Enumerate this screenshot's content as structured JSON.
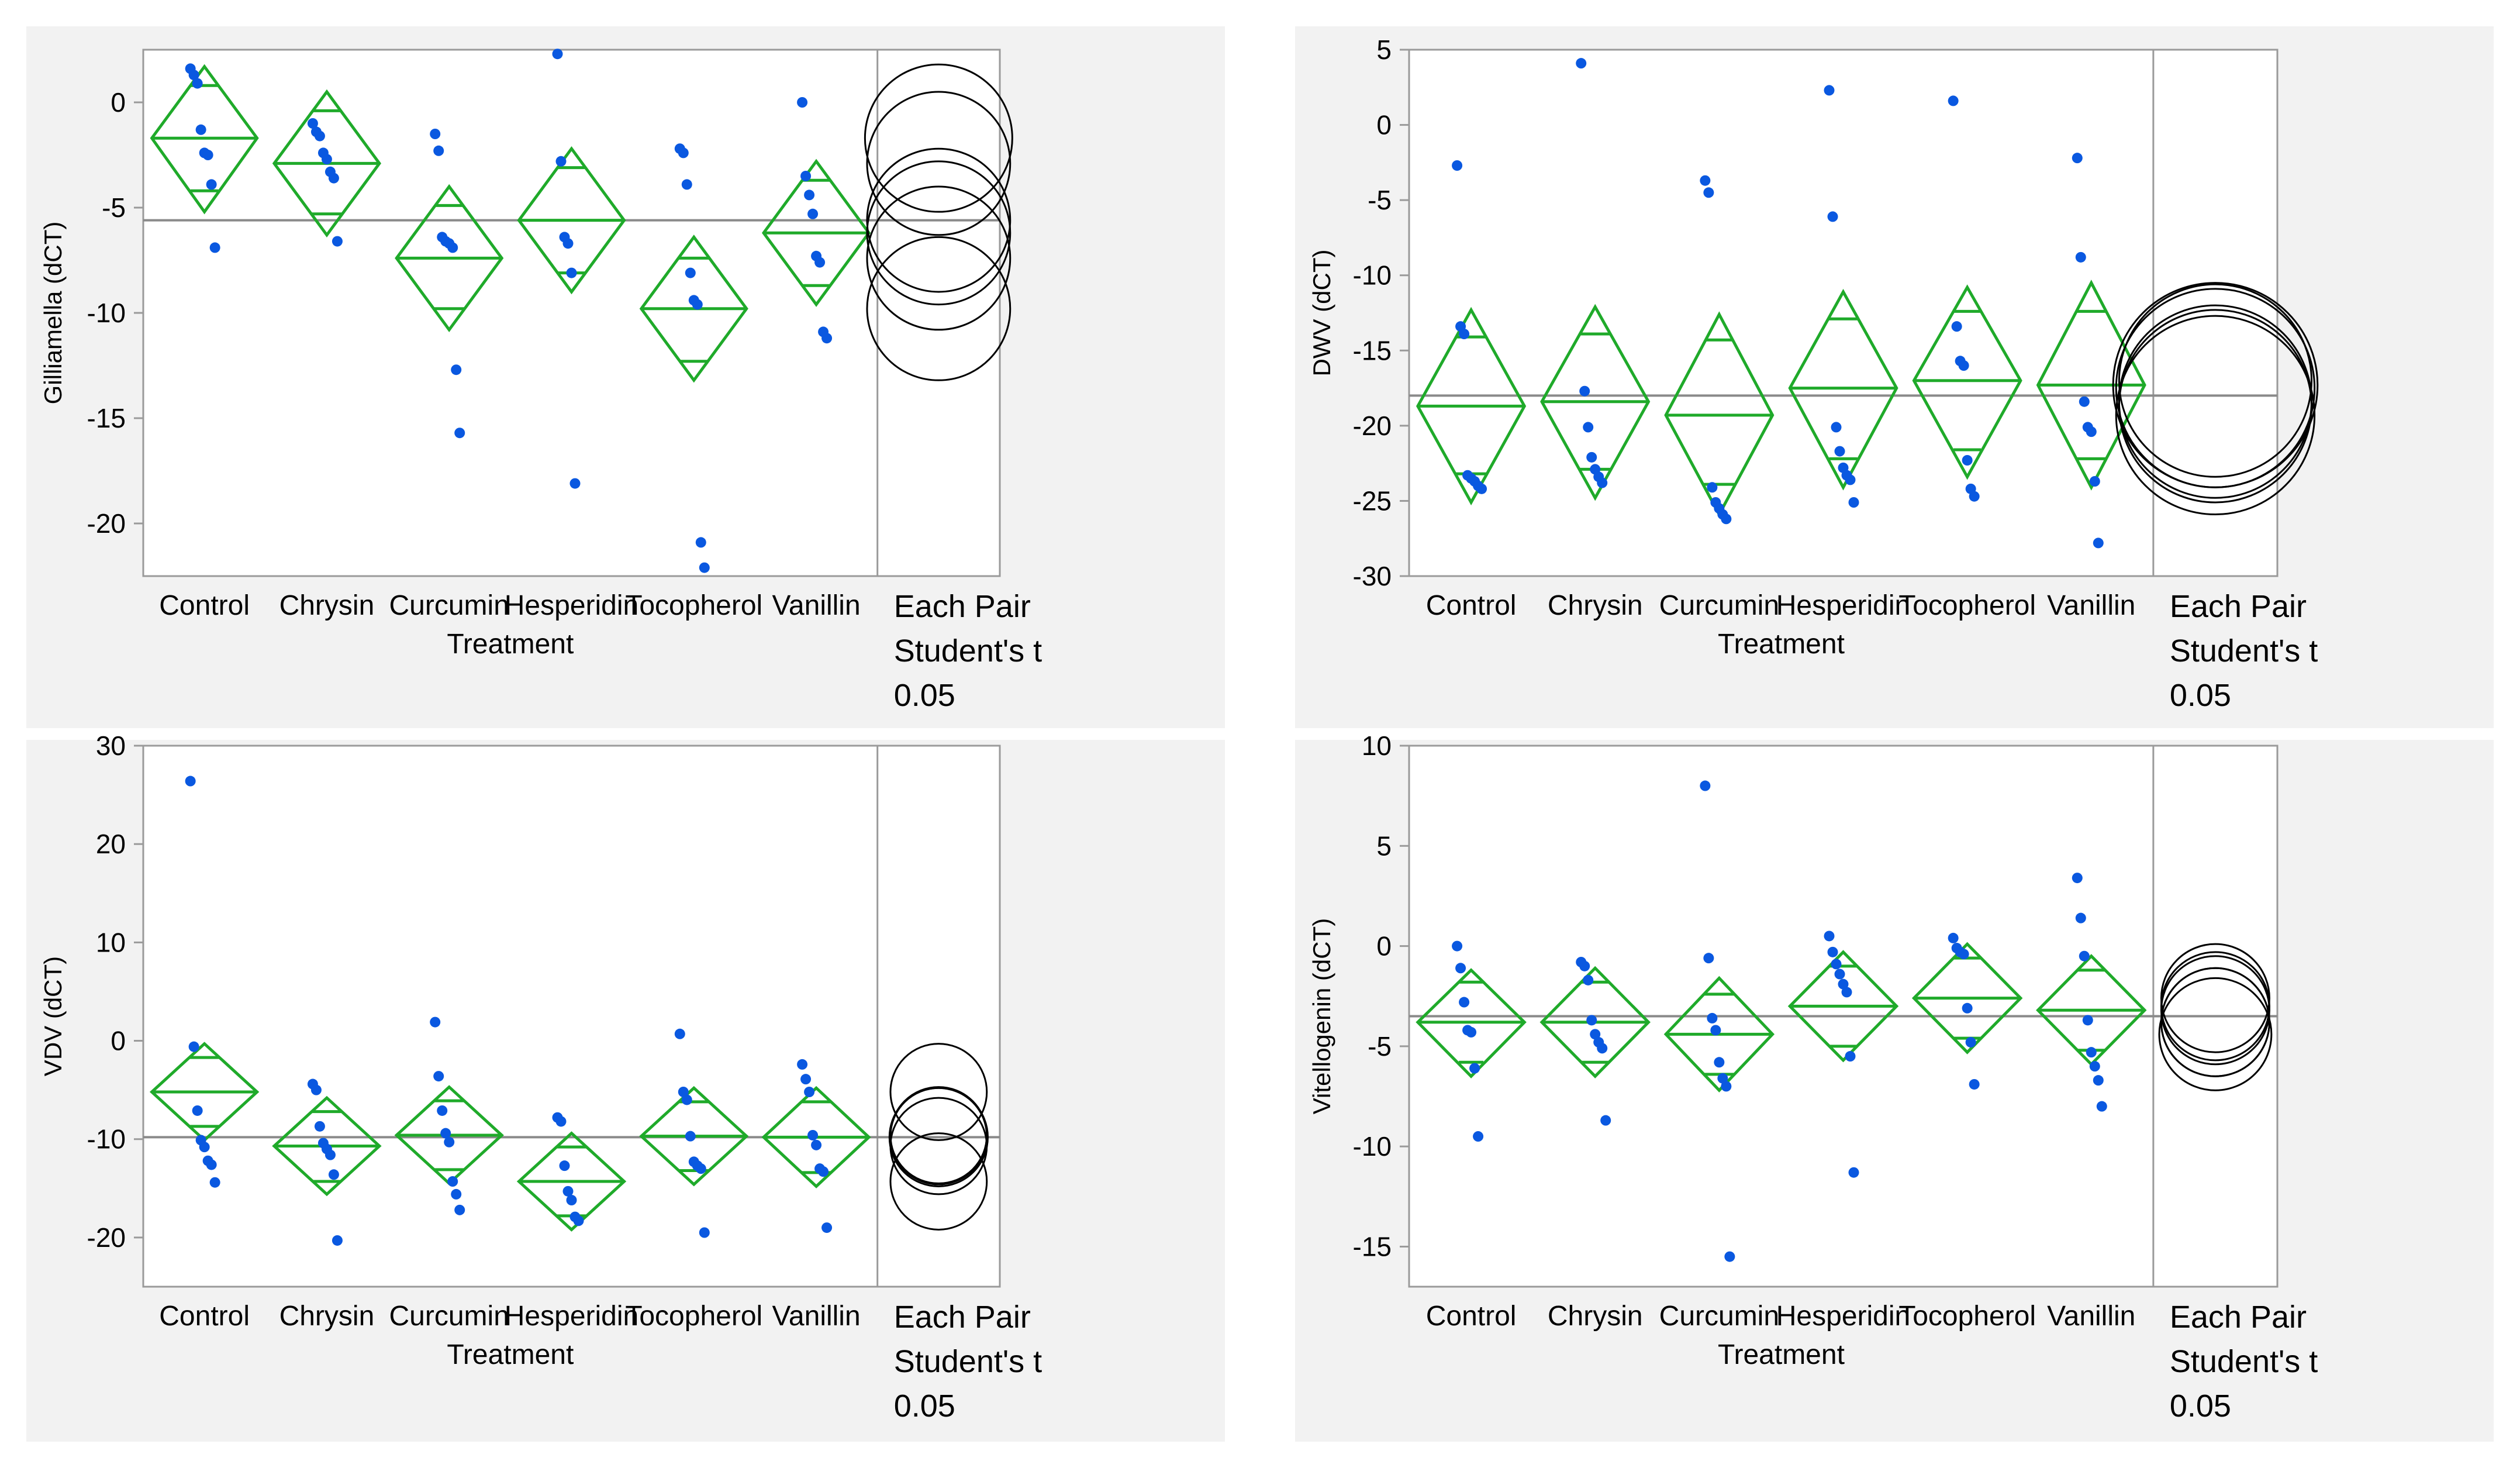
{
  "colors": {
    "diamond": "#1faa2a",
    "point": "#0a58e0",
    "axis": "#9a9a9a",
    "grand_mean": "#8a8a8a",
    "circle": "#000000",
    "panel_bg": "#f2f2f2"
  },
  "comparison_label": [
    "Each Pair",
    "Student's t",
    " 0.05"
  ],
  "chart_data": [
    {
      "type": "scatter",
      "variant": "oneway-means-diamonds",
      "ylabel": "Gilliamella (dCT)",
      "xlabel": "Treatment",
      "categories": [
        "Control",
        "Chrysin",
        "Curcumin",
        "Hesperidin",
        "Tocopherol",
        "Vanillin"
      ],
      "ylim": [
        -22.5,
        2.5
      ],
      "yticks": [
        0,
        -5,
        -10,
        -15,
        -20
      ],
      "grand_mean": -5.6,
      "groups": [
        {
          "name": "Control",
          "mean": -1.7,
          "ci_low": -5.2,
          "ci_high": 1.7,
          "overlap_low": -4.2,
          "overlap_high": 0.8,
          "points": [
            1.6,
            1.3,
            0.9,
            -1.3,
            -2.4,
            -2.5,
            -3.9,
            -6.9
          ]
        },
        {
          "name": "Chrysin",
          "mean": -2.9,
          "ci_low": -6.3,
          "ci_high": 0.5,
          "overlap_low": -5.3,
          "overlap_high": -0.4,
          "points": [
            -1.0,
            -1.4,
            -1.6,
            -2.4,
            -2.7,
            -3.3,
            -3.6,
            -6.6
          ]
        },
        {
          "name": "Curcumin",
          "mean": -7.4,
          "ci_low": -10.8,
          "ci_high": -4.0,
          "overlap_low": -9.8,
          "overlap_high": -4.9,
          "points": [
            -1.5,
            -2.3,
            -6.4,
            -6.6,
            -6.7,
            -6.9,
            -12.7,
            -15.7
          ]
        },
        {
          "name": "Hesperidin",
          "mean": -5.6,
          "ci_low": -9.0,
          "ci_high": -2.2,
          "overlap_low": -8.1,
          "overlap_high": -3.1,
          "points": [
            2.3,
            -2.8,
            -6.4,
            -6.7,
            -8.1,
            -18.1
          ]
        },
        {
          "name": "Tocopherol",
          "mean": -9.8,
          "ci_low": -13.2,
          "ci_high": -6.4,
          "overlap_low": -12.3,
          "overlap_high": -7.4,
          "points": [
            -2.2,
            -2.4,
            -3.9,
            -8.1,
            -9.4,
            -9.6,
            -20.9,
            -22.1
          ]
        },
        {
          "name": "Vanillin",
          "mean": -6.2,
          "ci_low": -9.6,
          "ci_high": -2.8,
          "overlap_low": -8.7,
          "overlap_high": -3.7,
          "points": [
            0.0,
            -3.5,
            -4.4,
            -5.3,
            -7.3,
            -7.6,
            -10.9,
            -11.2
          ]
        }
      ]
    },
    {
      "type": "scatter",
      "variant": "oneway-means-diamonds",
      "ylabel": "DWV (dCT)",
      "xlabel": "Treatment",
      "categories": [
        "Control",
        "Chrysin",
        "Curcumin",
        "Hesperidin",
        "Tocopherol",
        "Vanillin"
      ],
      "ylim": [
        -30,
        5
      ],
      "yticks": [
        5,
        0,
        -5,
        -10,
        -15,
        -20,
        -25,
        -30
      ],
      "grand_mean": -18,
      "groups": [
        {
          "name": "Control",
          "mean": -18.7,
          "ci_low": -25.1,
          "ci_high": -12.3,
          "overlap_low": -23.2,
          "overlap_high": -14.1,
          "points": [
            -2.7,
            -13.4,
            -13.9,
            -23.3,
            -23.5,
            -23.7,
            -24.0,
            -24.2
          ]
        },
        {
          "name": "Chrysin",
          "mean": -18.4,
          "ci_low": -24.8,
          "ci_high": -12.1,
          "overlap_low": -22.9,
          "overlap_high": -13.9,
          "points": [
            4.1,
            -17.7,
            -20.1,
            -22.1,
            -22.9,
            -23.4,
            -23.8
          ]
        },
        {
          "name": "Curcumin",
          "mean": -19.3,
          "ci_low": -25.9,
          "ci_high": -12.6,
          "overlap_low": -23.9,
          "overlap_high": -14.3,
          "points": [
            -3.7,
            -4.5,
            -24.1,
            -25.1,
            -25.5,
            -25.9,
            -26.2
          ]
        },
        {
          "name": "Hesperidin",
          "mean": -17.5,
          "ci_low": -24.1,
          "ci_high": -11.1,
          "overlap_low": -22.2,
          "overlap_high": -12.9,
          "points": [
            2.3,
            -6.1,
            -20.1,
            -21.7,
            -22.8,
            -23.3,
            -23.6,
            -25.1
          ]
        },
        {
          "name": "Tocopherol",
          "mean": -17.0,
          "ci_low": -23.4,
          "ci_high": -10.8,
          "overlap_low": -21.6,
          "overlap_high": -12.4,
          "points": [
            1.6,
            -13.4,
            -15.7,
            -16.0,
            -22.3,
            -24.2,
            -24.7
          ]
        },
        {
          "name": "Vanillin",
          "mean": -17.3,
          "ci_low": -24.1,
          "ci_high": -10.5,
          "overlap_low": -22.2,
          "overlap_high": -12.4,
          "points": [
            -2.2,
            -8.8,
            -18.4,
            -20.1,
            -20.4,
            -23.7,
            -27.8
          ]
        }
      ]
    },
    {
      "type": "scatter",
      "variant": "oneway-means-diamonds",
      "ylabel": "VDV (dCT)",
      "xlabel": "Treatment",
      "categories": [
        "Control",
        "Chrysin",
        "Curcumin",
        "Hesperidin",
        "Tocopherol",
        "Vanillin"
      ],
      "ylim": [
        -25,
        30
      ],
      "yticks": [
        30,
        20,
        10,
        0,
        -10,
        -20
      ],
      "grand_mean": -9.8,
      "groups": [
        {
          "name": "Control",
          "mean": -5.2,
          "ci_low": -10.1,
          "ci_high": -0.3,
          "overlap_low": -8.7,
          "overlap_high": -1.7,
          "points": [
            26.4,
            -0.6,
            -7.1,
            -10.1,
            -10.8,
            -12.2,
            -12.6,
            -14.4
          ]
        },
        {
          "name": "Chrysin",
          "mean": -10.7,
          "ci_low": -15.6,
          "ci_high": -5.8,
          "overlap_low": -14.3,
          "overlap_high": -7.2,
          "points": [
            -4.4,
            -5.0,
            -8.7,
            -10.4,
            -11.0,
            -11.6,
            -13.6,
            -20.3
          ]
        },
        {
          "name": "Curcumin",
          "mean": -9.6,
          "ci_low": -14.5,
          "ci_high": -4.7,
          "overlap_low": -13.1,
          "overlap_high": -6.1,
          "points": [
            1.9,
            -3.6,
            -7.1,
            -9.4,
            -10.3,
            -14.3,
            -15.6,
            -17.2
          ]
        },
        {
          "name": "Hesperidin",
          "mean": -14.3,
          "ci_low": -19.2,
          "ci_high": -9.4,
          "overlap_low": -17.8,
          "overlap_high": -10.8,
          "points": [
            -7.8,
            -8.2,
            -12.7,
            -15.3,
            -16.2,
            -17.9,
            -18.3
          ]
        },
        {
          "name": "Tocopherol",
          "mean": -9.7,
          "ci_low": -14.6,
          "ci_high": -4.8,
          "overlap_low": -13.2,
          "overlap_high": -6.2,
          "points": [
            0.7,
            -5.2,
            -6.0,
            -9.7,
            -12.3,
            -12.7,
            -13.0,
            -19.5
          ]
        },
        {
          "name": "Vanillin",
          "mean": -9.8,
          "ci_low": -14.8,
          "ci_high": -4.8,
          "overlap_low": -13.4,
          "overlap_high": -6.2,
          "points": [
            -2.4,
            -3.9,
            -5.2,
            -9.6,
            -10.6,
            -13.0,
            -13.3,
            -19.0
          ]
        }
      ]
    },
    {
      "type": "scatter",
      "variant": "oneway-means-diamonds",
      "ylabel": "Vitellogenin (dCT)",
      "xlabel": "Treatment",
      "categories": [
        "Control",
        "Chrysin",
        "Curcumin",
        "Hesperidin",
        "Tocopherol",
        "Vanillin"
      ],
      "ylim": [
        -17,
        10
      ],
      "yticks": [
        10,
        5,
        0,
        -5,
        -10,
        -15
      ],
      "grand_mean": -3.5,
      "groups": [
        {
          "name": "Control",
          "mean": -3.8,
          "ci_low": -6.5,
          "ci_high": -1.2,
          "overlap_low": -5.8,
          "overlap_high": -1.8,
          "points": [
            0.0,
            -1.1,
            -2.8,
            -4.2,
            -4.3,
            -6.1,
            -9.5
          ]
        },
        {
          "name": "Chrysin",
          "mean": -3.8,
          "ci_low": -6.5,
          "ci_high": -1.1,
          "overlap_low": -5.8,
          "overlap_high": -1.8,
          "points": [
            -0.8,
            -1.0,
            -1.7,
            -3.7,
            -4.4,
            -4.8,
            -5.1,
            -8.7
          ]
        },
        {
          "name": "Curcumin",
          "mean": -4.4,
          "ci_low": -7.2,
          "ci_high": -1.6,
          "overlap_low": -6.4,
          "overlap_high": -2.4,
          "points": [
            8.0,
            -0.6,
            -3.6,
            -4.2,
            -5.8,
            -6.6,
            -7.0,
            -15.5
          ]
        },
        {
          "name": "Hesperidin",
          "mean": -3.0,
          "ci_low": -5.7,
          "ci_high": -0.3,
          "overlap_low": -5.0,
          "overlap_high": -1.0,
          "points": [
            0.5,
            -0.3,
            -0.9,
            -1.4,
            -1.9,
            -2.3,
            -5.5,
            -11.3
          ]
        },
        {
          "name": "Tocopherol",
          "mean": -2.6,
          "ci_low": -5.3,
          "ci_high": 0.1,
          "overlap_low": -4.6,
          "overlap_high": -0.6,
          "points": [
            0.4,
            -0.1,
            -0.3,
            -0.4,
            -3.1,
            -4.8,
            -6.9
          ]
        },
        {
          "name": "Vanillin",
          "mean": -3.2,
          "ci_low": -5.9,
          "ci_high": -0.5,
          "overlap_low": -5.2,
          "overlap_high": -1.2,
          "points": [
            3.4,
            1.4,
            -0.5,
            -3.7,
            -5.3,
            -6.0,
            -6.7,
            -8.0
          ]
        }
      ]
    }
  ]
}
